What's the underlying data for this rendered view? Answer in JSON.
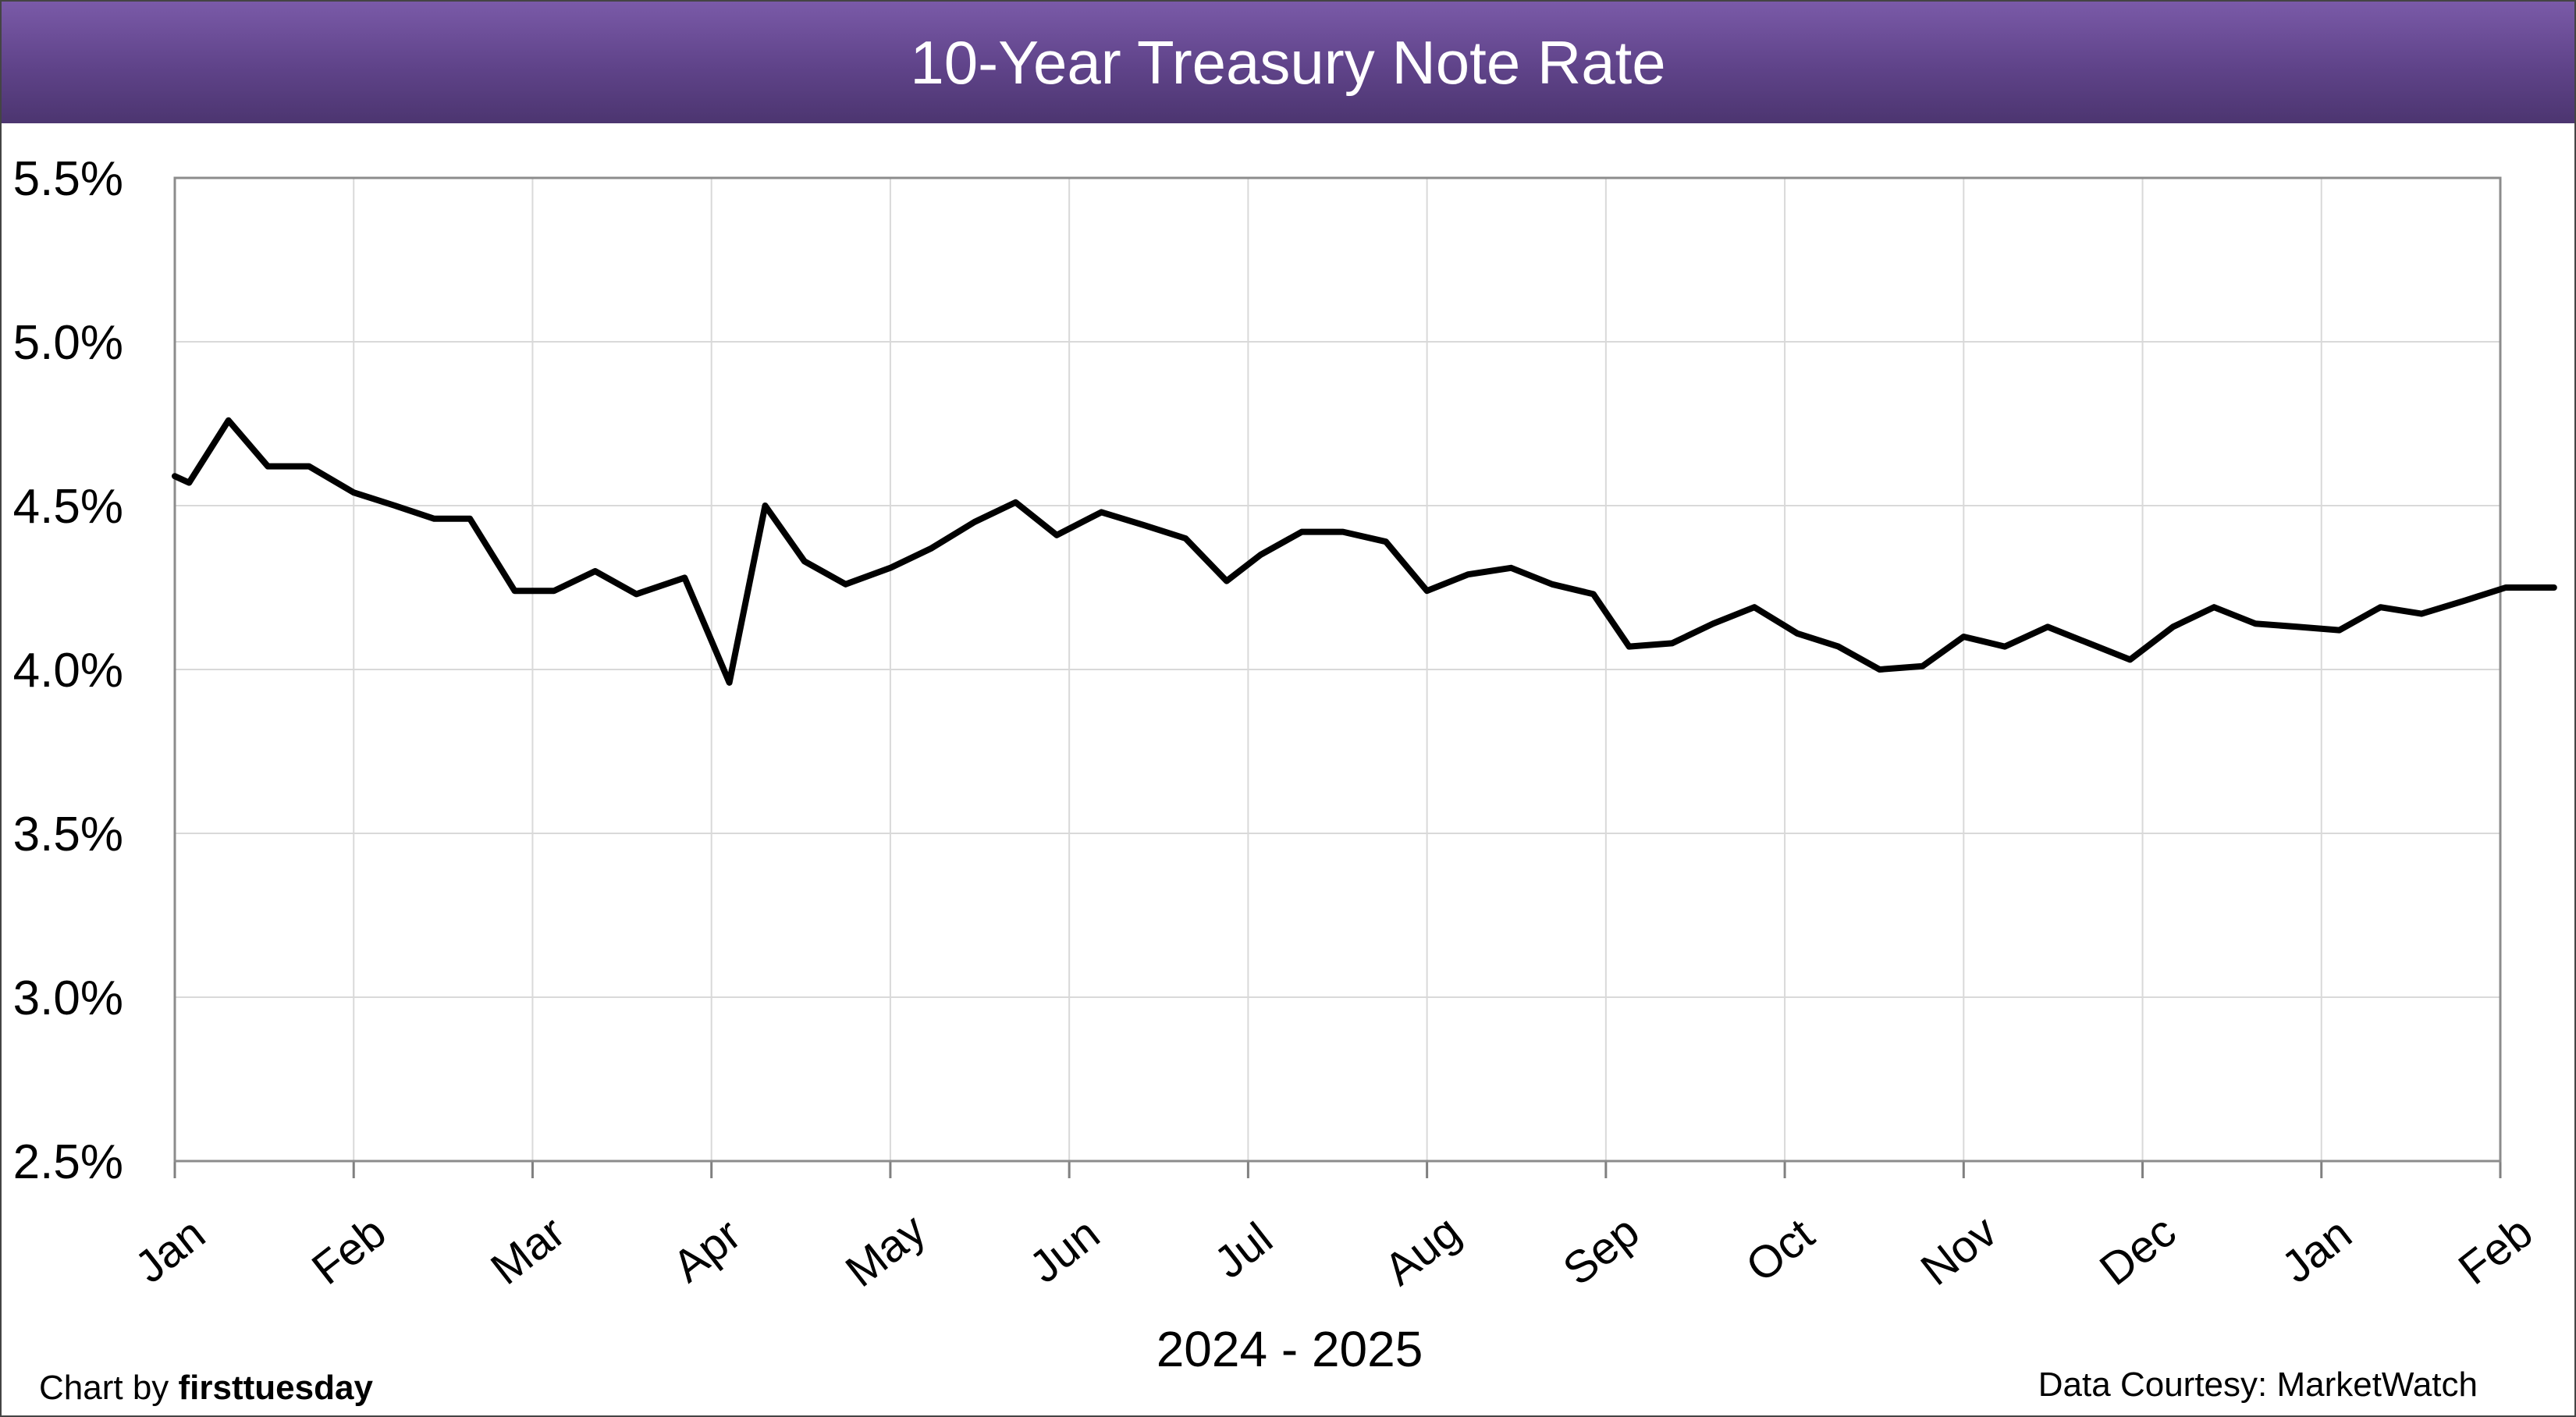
{
  "chart_data": {
    "type": "line",
    "title": "10-Year Treasury Note Rate",
    "xlabel": "2024 - 2025",
    "ylabel": "",
    "ylim": [
      2.5,
      5.5
    ],
    "yticks": [
      "2.5%",
      "3.0%",
      "3.5%",
      "4.0%",
      "4.5%",
      "5.0%",
      "5.5%"
    ],
    "ytick_values": [
      2.5,
      3.0,
      3.5,
      4.0,
      4.5,
      5.0,
      5.5
    ],
    "x_tick_labels": [
      "Jan",
      "Feb",
      "Mar",
      "Apr",
      "May",
      "Jun",
      "Jul",
      "Aug",
      "Sep",
      "Oct",
      "Nov",
      "Dec",
      "Jan",
      "Feb"
    ],
    "grid": true,
    "legend": "none",
    "line_color": "#000000",
    "series": [
      {
        "values": [
          4.59,
          4.57,
          4.76,
          4.62,
          4.62,
          4.54,
          4.5,
          4.46,
          4.46,
          4.24,
          4.24,
          4.3,
          4.23,
          4.28,
          3.96,
          4.5,
          4.33,
          4.26,
          4.31,
          4.37,
          4.45,
          4.51,
          4.41,
          4.48,
          4.44,
          4.4,
          4.27,
          4.35,
          4.42,
          4.42,
          4.39,
          4.24,
          4.29,
          4.31,
          4.26,
          4.23,
          4.07,
          4.08,
          4.14,
          4.19,
          4.11,
          4.07,
          4.0,
          4.01,
          4.1,
          4.07,
          4.13,
          4.08,
          4.03,
          4.13,
          4.19,
          4.14,
          4.13,
          4.12,
          4.19,
          4.17,
          4.21,
          4.25,
          4.25
        ],
        "months": [
          0.0,
          0.08,
          0.3,
          0.52,
          0.75,
          1.0,
          1.23,
          1.45,
          1.65,
          1.9,
          2.12,
          2.35,
          2.58,
          2.85,
          3.1,
          3.3,
          3.52,
          3.75,
          4.0,
          4.23,
          4.47,
          4.7,
          4.93,
          5.18,
          5.42,
          5.65,
          5.88,
          6.07,
          6.3,
          6.53,
          6.77,
          7.0,
          7.23,
          7.47,
          7.7,
          7.93,
          8.13,
          8.37,
          8.6,
          8.83,
          9.07,
          9.3,
          9.53,
          9.77,
          10.0,
          10.23,
          10.47,
          10.7,
          10.93,
          11.17,
          11.4,
          11.63,
          11.87,
          12.1,
          12.33,
          12.56,
          12.8,
          13.03,
          13.3
        ]
      }
    ]
  },
  "footer": {
    "credit_prefix": "Chart by ",
    "credit_brand": "firsttuesday",
    "source": "Data Courtesy: MarketWatch"
  }
}
